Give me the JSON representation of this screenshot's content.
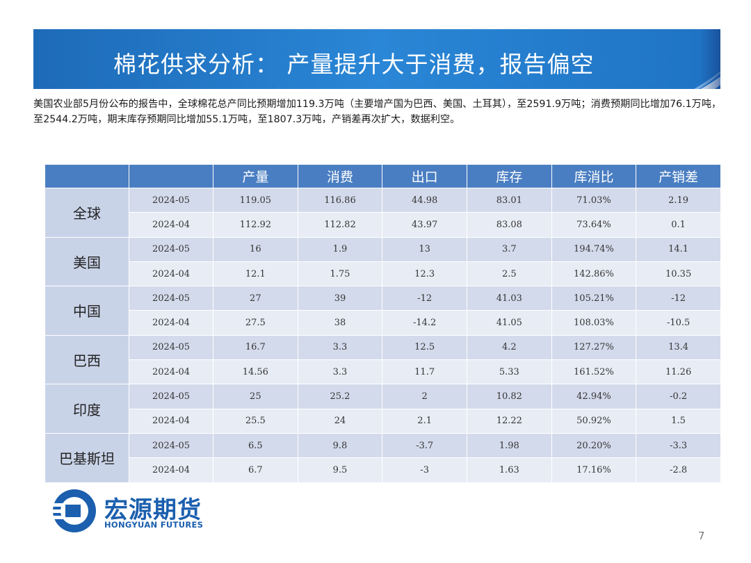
{
  "title": "棉花供求分析： 产量提升大于消费，报告偏空",
  "intro": "美国农业部5月份公布的报告中，全球棉花总产同比预期增加119.3万吨（主要增产国为巴西、美国、土耳其），至2591.9万吨；消费预期同比增加76.1万吨，至2544.2万吨，期末库存预期同比增加55.1万吨，至1807.3万吨，产销差再次扩大，数据利空。",
  "table": {
    "headers": [
      "",
      "",
      "产量",
      "消费",
      "出口",
      "库存",
      "库消比",
      "产销差"
    ],
    "groups": [
      {
        "region": "全球",
        "rows": [
          [
            "2024-05",
            "119.05",
            "116.86",
            "44.98",
            "83.01",
            "71.03%",
            "2.19"
          ],
          [
            "2024-04",
            "112.92",
            "112.82",
            "43.97",
            "83.08",
            "73.64%",
            "0.1"
          ]
        ]
      },
      {
        "region": "美国",
        "rows": [
          [
            "2024-05",
            "16",
            "1.9",
            "13",
            "3.7",
            "194.74%",
            "14.1"
          ],
          [
            "2024-04",
            "12.1",
            "1.75",
            "12.3",
            "2.5",
            "142.86%",
            "10.35"
          ]
        ]
      },
      {
        "region": "中国",
        "rows": [
          [
            "2024-05",
            "27",
            "39",
            "-12",
            "41.03",
            "105.21%",
            "-12"
          ],
          [
            "2024-04",
            "27.5",
            "38",
            "-14.2",
            "41.05",
            "108.03%",
            "-10.5"
          ]
        ]
      },
      {
        "region": "巴西",
        "rows": [
          [
            "2024-05",
            "16.7",
            "3.3",
            "12.5",
            "4.2",
            "127.27%",
            "13.4"
          ],
          [
            "2024-04",
            "14.56",
            "3.3",
            "11.7",
            "5.33",
            "161.52%",
            "11.26"
          ]
        ]
      },
      {
        "region": "印度",
        "rows": [
          [
            "2024-05",
            "25",
            "25.2",
            "2",
            "10.82",
            "42.94%",
            "-0.2"
          ],
          [
            "2024-04",
            "25.5",
            "24",
            "2.1",
            "12.22",
            "50.92%",
            "1.5"
          ]
        ]
      },
      {
        "region": "巴基斯坦",
        "rows": [
          [
            "2024-05",
            "6.5",
            "9.8",
            "-3.7",
            "1.98",
            "20.20%",
            "-3.3"
          ],
          [
            "2024-04",
            "6.7",
            "9.5",
            "-3",
            "1.63",
            "17.16%",
            "-2.8"
          ]
        ]
      }
    ]
  },
  "logo": {
    "cn": "宏源期货",
    "en": "HONGYUAN FUTURES"
  },
  "page_number": "7",
  "colors": {
    "brand": "#1b5fae",
    "header_bg": "#4a7ec2",
    "row_dark": "#d3daeb",
    "row_light": "#e8ecf5"
  }
}
